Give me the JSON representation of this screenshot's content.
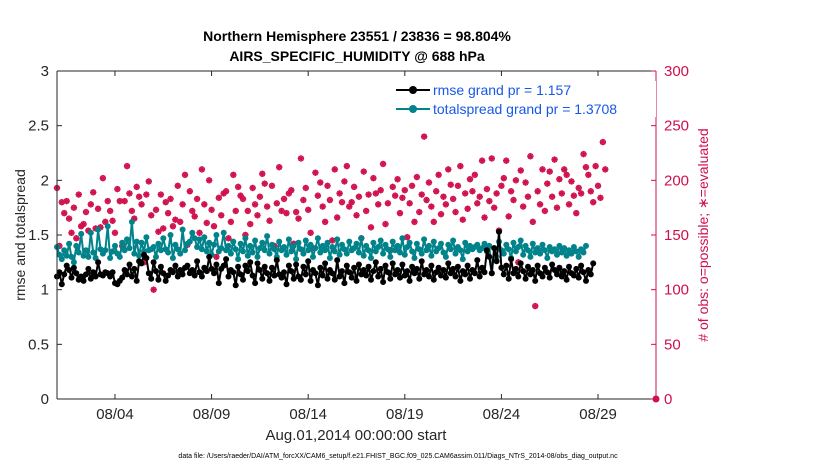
{
  "chart_data": {
    "type": "line",
    "title_line1": "Northern Hemisphere 23551 / 23836 = 98.804%",
    "title_line2": "AIRS_SPECIFIC_HUMIDITY @ 688 hPa",
    "xlabel": "Aug.01,2014 00:00:00 start",
    "ylabel_left": "rmse and totalspread",
    "ylabel_right": "# of obs: o=possible; ∗=evaluated",
    "footnote": "data file: /Users/raeder/DAI/ATM_forcXX/CAM6_setup/f.e21.FHIST_BGC.f09_025.CAM6assim.011/Diags_NTrS_2014-08/obs_diag_output.nc",
    "xlim": [
      1.0,
      32.0
    ],
    "ylim_left": [
      0,
      3
    ],
    "ylim_right": [
      0,
      300
    ],
    "x_ticks": [
      4,
      9,
      14,
      19,
      24,
      29
    ],
    "x_tick_labels": [
      "08/04",
      "08/09",
      "08/14",
      "08/19",
      "08/24",
      "08/29"
    ],
    "y_left_ticks": [
      "0",
      "0.5",
      "1",
      "1.5",
      "2",
      "2.5",
      "3"
    ],
    "y_right_ticks": [
      "0",
      "50",
      "100",
      "150",
      "200",
      "250",
      "300"
    ],
    "x_start": 1.0,
    "x_step": 0.125,
    "series": [
      {
        "name": "rmse grand pr = 1.157",
        "color": "#000000",
        "axis": "left",
        "values": [
          1.12,
          1.16,
          1.05,
          1.14,
          1.22,
          1.18,
          1.11,
          1.2,
          1.15,
          1.09,
          1.12,
          1.08,
          1.14,
          1.19,
          1.1,
          1.16,
          1.12,
          1.25,
          1.14,
          1.13,
          1.16,
          1.15,
          1.12,
          1.16,
          1.06,
          1.05,
          1.08,
          1.11,
          1.18,
          1.14,
          1.23,
          1.12,
          1.19,
          1.08,
          1.26,
          1.24,
          1.32,
          1.29,
          1.15,
          1.1,
          1.25,
          1.17,
          1.09,
          1.21,
          1.15,
          1.08,
          1.13,
          1.18,
          1.16,
          1.22,
          1.12,
          1.18,
          1.14,
          1.2,
          1.22,
          1.15,
          1.18,
          1.13,
          1.26,
          1.16,
          1.12,
          1.2,
          1.17,
          1.3,
          1.19,
          1.15,
          1.23,
          1.06,
          1.19,
          1.22,
          1.28,
          1.12,
          1.18,
          1.16,
          1.04,
          1.21,
          1.14,
          1.09,
          1.22,
          1.17,
          1.25,
          1.13,
          1.06,
          1.24,
          1.18,
          1.1,
          1.21,
          1.15,
          1.08,
          1.2,
          1.13,
          1.27,
          1.14,
          1.11,
          1.16,
          1.05,
          1.22,
          1.17,
          1.1,
          1.23,
          1.12,
          1.09,
          1.21,
          1.14,
          1.26,
          1.08,
          1.18,
          1.15,
          1.04,
          1.2,
          1.13,
          1.24,
          1.1,
          1.18,
          1.15,
          1.09,
          1.27,
          1.12,
          1.17,
          1.06,
          1.22,
          1.16,
          1.11,
          1.2,
          1.08,
          1.23,
          1.14,
          1.18,
          1.13,
          1.21,
          1.09,
          1.17,
          1.25,
          1.12,
          1.19,
          1.07,
          1.22,
          1.16,
          1.1,
          1.24,
          1.14,
          1.18,
          1.11,
          1.23,
          1.13,
          1.17,
          1.08,
          1.21,
          1.15,
          1.19,
          1.1,
          1.26,
          1.14,
          1.18,
          1.12,
          1.22,
          1.09,
          1.16,
          1.2,
          1.13,
          1.18,
          1.11,
          1.24,
          1.15,
          1.19,
          1.12,
          1.21,
          1.08,
          1.17,
          1.14,
          1.22,
          1.1,
          1.18,
          1.15,
          1.27,
          1.12,
          1.2,
          1.16,
          1.36,
          1.3,
          1.15,
          1.38,
          1.26,
          1.53,
          1.2,
          1.14,
          1.22,
          1.1,
          1.28,
          1.15,
          1.19,
          1.12,
          1.24,
          1.17,
          1.1,
          1.21,
          1.14,
          1.18,
          1.08,
          1.22,
          1.15,
          1.12,
          1.2,
          1.16,
          1.11,
          1.23,
          1.18,
          1.14,
          1.2,
          1.12,
          1.17,
          1.09,
          1.21,
          1.15,
          1.13,
          1.19,
          1.11,
          1.22,
          1.16,
          1.08,
          1.18,
          1.14,
          1.24
        ]
      },
      {
        "name": "totalspread grand pr = 1.3708",
        "color": "#00838a",
        "axis": "left",
        "values": [
          1.39,
          1.32,
          1.28,
          1.36,
          1.31,
          1.42,
          1.3,
          1.25,
          1.4,
          1.34,
          1.51,
          1.31,
          1.36,
          1.3,
          1.52,
          1.34,
          1.29,
          1.55,
          1.37,
          1.33,
          1.36,
          1.58,
          1.29,
          1.35,
          1.4,
          1.33,
          1.3,
          1.43,
          1.36,
          1.46,
          1.38,
          1.62,
          1.33,
          1.44,
          1.31,
          1.43,
          1.35,
          1.48,
          1.36,
          1.37,
          1.39,
          1.3,
          1.42,
          1.36,
          1.47,
          1.37,
          1.34,
          1.5,
          1.29,
          1.41,
          1.37,
          1.33,
          1.55,
          1.36,
          1.42,
          1.44,
          1.52,
          1.47,
          1.39,
          1.46,
          1.37,
          1.48,
          1.35,
          1.43,
          1.32,
          1.41,
          1.5,
          1.35,
          1.38,
          1.52,
          1.36,
          1.4,
          1.33,
          1.44,
          1.37,
          1.28,
          1.42,
          1.35,
          1.47,
          1.31,
          1.4,
          1.34,
          1.45,
          1.3,
          1.38,
          1.43,
          1.36,
          1.49,
          1.33,
          1.41,
          1.37,
          1.3,
          1.44,
          1.36,
          1.39,
          1.32,
          1.46,
          1.35,
          1.4,
          1.28,
          1.43,
          1.37,
          1.33,
          1.45,
          1.36,
          1.41,
          1.3,
          1.38,
          1.47,
          1.34,
          1.4,
          1.36,
          1.43,
          1.29,
          1.39,
          1.35,
          1.46,
          1.32,
          1.41,
          1.37,
          1.33,
          1.44,
          1.36,
          1.38,
          1.42,
          1.34,
          1.47,
          1.31,
          1.4,
          1.36,
          1.29,
          1.43,
          1.35,
          1.39,
          1.45,
          1.33,
          1.41,
          1.37,
          1.3,
          1.44,
          1.36,
          1.4,
          1.34,
          1.47,
          1.32,
          1.39,
          1.43,
          1.35,
          1.29,
          1.42,
          1.37,
          1.33,
          1.46,
          1.36,
          1.4,
          1.31,
          1.44,
          1.35,
          1.38,
          1.42,
          1.34,
          1.3,
          1.41,
          1.37,
          1.45,
          1.33,
          1.39,
          1.36,
          1.28,
          1.43,
          1.35,
          1.4,
          1.37,
          1.39,
          1.41,
          1.36,
          1.38,
          1.42,
          1.35,
          1.4,
          1.15,
          1.38,
          1.3,
          1.44,
          1.36,
          1.33,
          1.41,
          1.37,
          1.29,
          1.43,
          1.35,
          1.39,
          1.45,
          1.32,
          1.4,
          1.36,
          1.3,
          1.42,
          1.34,
          1.38,
          1.33,
          1.41,
          1.36,
          1.29,
          1.39,
          1.35,
          1.37,
          1.32,
          1.4,
          1.34,
          1.38,
          1.31,
          1.36,
          1.33,
          1.39,
          1.35,
          1.3,
          1.37,
          1.34,
          1.4
        ]
      }
    ],
    "obs_evaluated": {
      "name": "# of obs evaluated",
      "color": "#d0104c",
      "axis": "right",
      "values": [
        193,
        140,
        180,
        170,
        181,
        165,
        152,
        175,
        147,
        187,
        158,
        160,
        171,
        154,
        178,
        189,
        156,
        174,
        157,
        202,
        162,
        181,
        172,
        163,
        152,
        192,
        181,
        140,
        181,
        213,
        188,
        172,
        165,
        194,
        185,
        178,
        125,
        187,
        199,
        168,
        100,
        173,
        153,
        187,
        156,
        180,
        170,
        183,
        158,
        164,
        195,
        162,
        178,
        205,
        141,
        190,
        172,
        167,
        183,
        152,
        210,
        178,
        161,
        200,
        173,
        158,
        130,
        184,
        168,
        188,
        190,
        147,
        162,
        205,
        172,
        194,
        186,
        183,
        150,
        172,
        160,
        193,
        178,
        168,
        185,
        206,
        197,
        176,
        163,
        195,
        140,
        179,
        212,
        172,
        183,
        170,
        188,
        191,
        142,
        171,
        165,
        220,
        182,
        193,
        173,
        152,
        138,
        207,
        186,
        198,
        176,
        162,
        195,
        182,
        145,
        210,
        166,
        188,
        180,
        199,
        213,
        176,
        180,
        194,
        168,
        185,
        147,
        208,
        172,
        187,
        157,
        202,
        188,
        178,
        191,
        215,
        160,
        179,
        136,
        194,
        186,
        201,
        170,
        184,
        191,
        148,
        179,
        195,
        162,
        203,
        171,
        187,
        240,
        182,
        198,
        176,
        162,
        190,
        205,
        169,
        185,
        178,
        210,
        196,
        183,
        171,
        195,
        213,
        164,
        188,
        174,
        201,
        190,
        205,
        179,
        185,
        218,
        166,
        192,
        181,
        220,
        175,
        188,
        154,
        195,
        202,
        218,
        167,
        190,
        182,
        200,
        125,
        209,
        176,
        198,
        185,
        222,
        162,
        85,
        190,
        178,
        210,
        172,
        197,
        208,
        185,
        219,
        175,
        201,
        188,
        210,
        205,
        178,
        199,
        186,
        170,
        193,
        188,
        224,
        212,
        205,
        190,
        180,
        213,
        195,
        184,
        235,
        210
      ]
    }
  }
}
